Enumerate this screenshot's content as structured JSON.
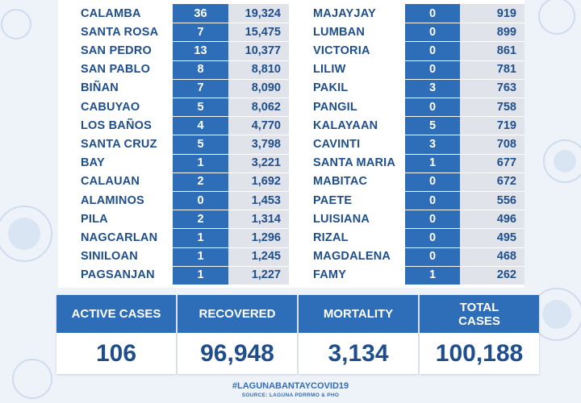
{
  "municipalities": {
    "left": [
      {
        "name": "CALAMBA",
        "active": "36",
        "total": "19,324"
      },
      {
        "name": "SANTA ROSA",
        "active": "7",
        "total": "15,475"
      },
      {
        "name": "SAN PEDRO",
        "active": "13",
        "total": "10,377"
      },
      {
        "name": "SAN PABLO",
        "active": "8",
        "total": "8,810"
      },
      {
        "name": "BIÑAN",
        "active": "7",
        "total": "8,090"
      },
      {
        "name": "CABUYAO",
        "active": "5",
        "total": "8,062"
      },
      {
        "name": "LOS BAÑOS",
        "active": "4",
        "total": "4,770"
      },
      {
        "name": "SANTA CRUZ",
        "active": "5",
        "total": "3,798"
      },
      {
        "name": "BAY",
        "active": "1",
        "total": "3,221"
      },
      {
        "name": "CALAUAN",
        "active": "2",
        "total": "1,692"
      },
      {
        "name": "ALAMINOS",
        "active": "0",
        "total": "1,453"
      },
      {
        "name": "PILA",
        "active": "2",
        "total": "1,314"
      },
      {
        "name": "NAGCARLAN",
        "active": "1",
        "total": "1,296"
      },
      {
        "name": "SINILOAN",
        "active": "1",
        "total": "1,245"
      },
      {
        "name": "PAGSANJAN",
        "active": "1",
        "total": "1,227"
      }
    ],
    "right": [
      {
        "name": "MAJAYJAY",
        "active": "0",
        "total": "919"
      },
      {
        "name": "LUMBAN",
        "active": "0",
        "total": "899"
      },
      {
        "name": "VICTORIA",
        "active": "0",
        "total": "861"
      },
      {
        "name": "LILIW",
        "active": "0",
        "total": "781"
      },
      {
        "name": "PAKIL",
        "active": "3",
        "total": "763"
      },
      {
        "name": "PANGIL",
        "active": "0",
        "total": "758"
      },
      {
        "name": "KALAYAAN",
        "active": "5",
        "total": "719"
      },
      {
        "name": "CAVINTI",
        "active": "3",
        "total": "708"
      },
      {
        "name": "SANTA MARIA",
        "active": "1",
        "total": "677"
      },
      {
        "name": "MABITAC",
        "active": "0",
        "total": "672"
      },
      {
        "name": "PAETE",
        "active": "0",
        "total": "556"
      },
      {
        "name": "LUISIANA",
        "active": "0",
        "total": "496"
      },
      {
        "name": "RIZAL",
        "active": "0",
        "total": "495"
      },
      {
        "name": "MAGDALENA",
        "active": "0",
        "total": "468"
      },
      {
        "name": "FAMY",
        "active": "1",
        "total": "262"
      }
    ]
  },
  "summary": [
    {
      "label": "ACTIVE CASES",
      "value": "106"
    },
    {
      "label": "RECOVERED",
      "value": "96,948"
    },
    {
      "label": "MORTALITY",
      "value": "3,134"
    },
    {
      "label": "TOTAL\nCASES",
      "value": "100,188"
    }
  ],
  "footer": {
    "hashtag": "#LAGUNABANTAYCOVID19",
    "source": "SOURCE: LAGUNA PDRRMO & PHO"
  },
  "colors": {
    "accent_blue": "#2e6db8",
    "text_blue": "#1f4e8c",
    "gray_cell": "#e0e4ea",
    "background": "#eef3fa"
  },
  "decor": {
    "background_icon": "virus-icon"
  }
}
